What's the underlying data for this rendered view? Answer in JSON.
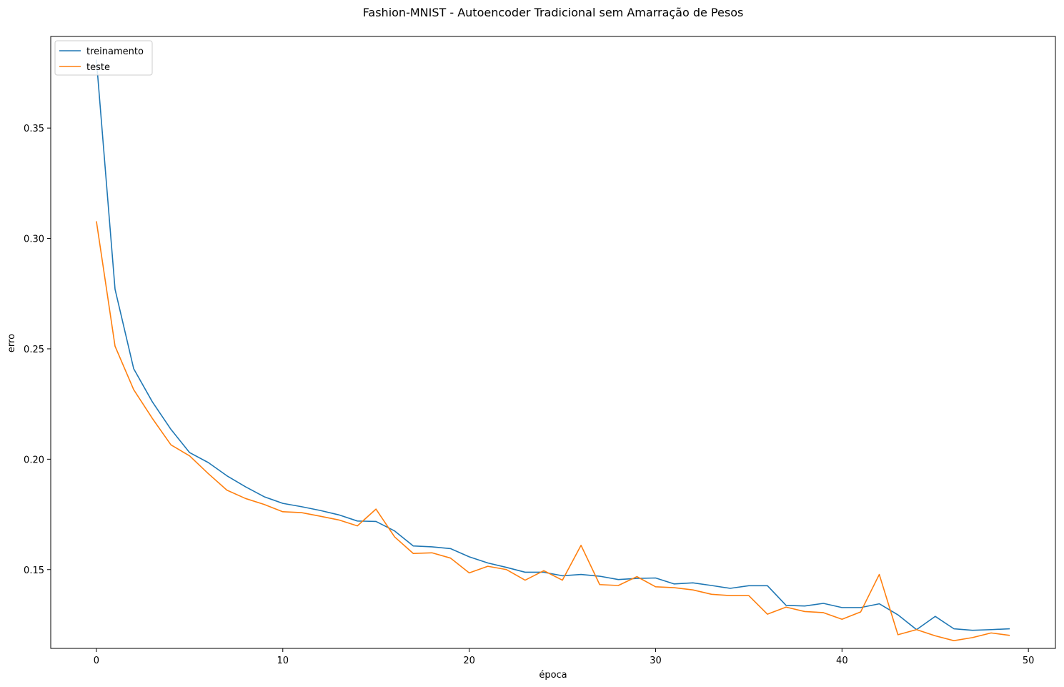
{
  "chart_data": {
    "type": "line",
    "title": "Fashion-MNIST - Autoencoder Tradicional sem Amarração de Pesos",
    "xlabel": "época",
    "ylabel": "erro",
    "xlim": [
      -2.45,
      51.45
    ],
    "ylim": [
      0.1143,
      0.3915
    ],
    "xticks": [
      0,
      10,
      20,
      30,
      40,
      50
    ],
    "yticks": [
      0.15,
      0.2,
      0.25,
      0.3,
      0.35
    ],
    "ytick_labels": [
      "0.15",
      "0.20",
      "0.25",
      "0.30",
      "0.35"
    ],
    "grid": false,
    "legend_position": "top-left",
    "x": [
      0,
      1,
      2,
      3,
      4,
      5,
      6,
      7,
      8,
      9,
      10,
      11,
      12,
      13,
      14,
      15,
      16,
      17,
      18,
      19,
      20,
      21,
      22,
      23,
      24,
      25,
      26,
      27,
      28,
      29,
      30,
      31,
      32,
      33,
      34,
      35,
      36,
      37,
      38,
      39,
      40,
      41,
      42,
      43,
      44,
      45,
      46,
      47,
      48,
      49
    ],
    "series": [
      {
        "name": "treinamento",
        "color": "#1f77b4",
        "values": [
          0.381,
          0.277,
          0.241,
          0.226,
          0.2135,
          0.203,
          0.1985,
          0.1925,
          0.1875,
          0.183,
          0.18,
          0.1785,
          0.1768,
          0.1748,
          0.172,
          0.1718,
          0.1675,
          0.1607,
          0.1603,
          0.1595,
          0.1558,
          0.153,
          0.151,
          0.1488,
          0.1488,
          0.1472,
          0.1478,
          0.147,
          0.1455,
          0.146,
          0.1462,
          0.1435,
          0.144,
          0.1428,
          0.1415,
          0.1427,
          0.1427,
          0.1338,
          0.1335,
          0.1347,
          0.1328,
          0.1328,
          0.1345,
          0.1295,
          0.1228,
          0.1288,
          0.1232,
          0.1225,
          0.1228,
          0.1232
        ]
      },
      {
        "name": "teste",
        "color": "#ff7f0e",
        "values": [
          0.3078,
          0.2512,
          0.2315,
          0.2185,
          0.2065,
          0.2015,
          0.1935,
          0.186,
          0.1822,
          0.1795,
          0.1762,
          0.1758,
          0.1742,
          0.1725,
          0.1698,
          0.1774,
          0.1648,
          0.1573,
          0.1576,
          0.1552,
          0.1485,
          0.1515,
          0.15,
          0.1452,
          0.1495,
          0.1452,
          0.161,
          0.1432,
          0.1428,
          0.1468,
          0.1422,
          0.1418,
          0.1408,
          0.1388,
          0.1382,
          0.1382,
          0.1298,
          0.133,
          0.131,
          0.1305,
          0.1275,
          0.1308,
          0.1478,
          0.1205,
          0.1228,
          0.12,
          0.1178,
          0.1192,
          0.1213,
          0.1202
        ]
      }
    ]
  }
}
